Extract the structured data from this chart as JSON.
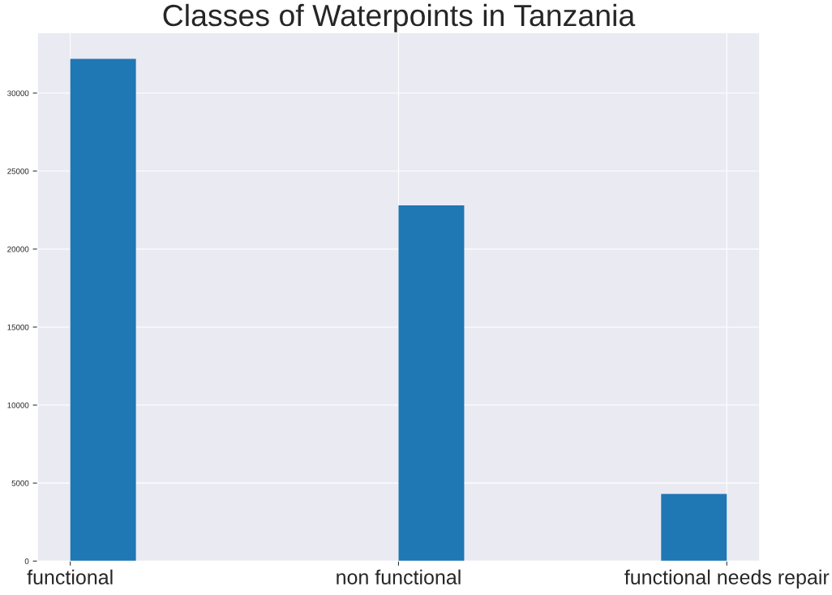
{
  "chart_data": {
    "type": "bar",
    "title": "Classes of Waterpoints in Tanzania",
    "categories": [
      "functional",
      "non functional",
      "functional needs repair"
    ],
    "values": [
      32200,
      22800,
      4300
    ],
    "color": "#1f77b4",
    "ylim": [
      0,
      33870
    ],
    "yticks": [
      0,
      5000,
      10000,
      15000,
      20000,
      25000,
      30000
    ],
    "grid": true
  }
}
